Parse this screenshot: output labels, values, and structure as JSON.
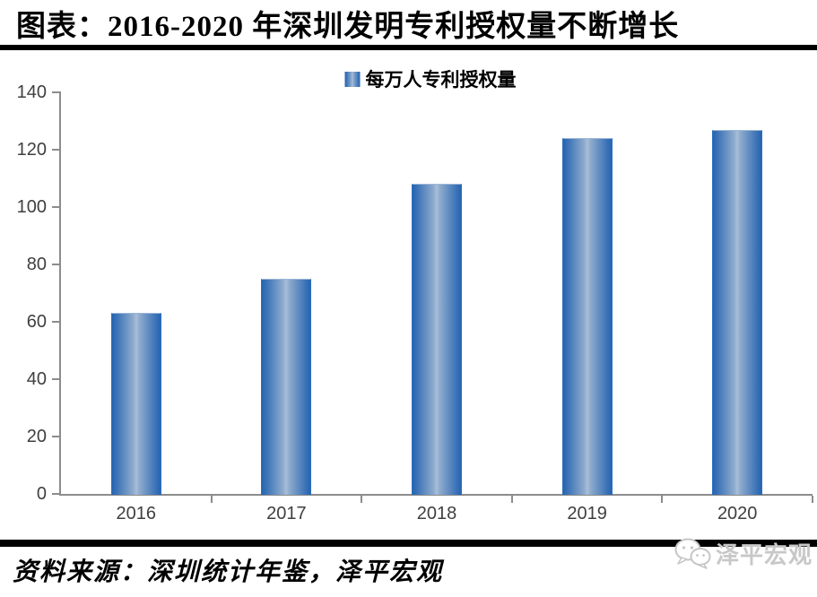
{
  "header": {
    "title": "图表：2016-2020 年深圳发明专利授权量不断增长"
  },
  "legend": {
    "label": "每万人专利授权量"
  },
  "chart_data": {
    "type": "bar",
    "title": "图表：2016-2020 年深圳发明专利授权量不断增长",
    "series_name": "每万人专利授权量",
    "categories": [
      "2016",
      "2017",
      "2018",
      "2019",
      "2020"
    ],
    "values": [
      63,
      75,
      108,
      124,
      127
    ],
    "xlabel": "",
    "ylabel": "",
    "ylim": [
      0,
      140
    ],
    "y_ticks": [
      0,
      20,
      40,
      60,
      80,
      100,
      120,
      140
    ],
    "grid": false,
    "legend_position": "top-center",
    "bar_color_edge": "#2565B0",
    "bar_color_center": "#A9BED9"
  },
  "footer": {
    "source": "资料来源：深圳统计年鉴，泽平宏观",
    "logo_text": "泽平宏观"
  },
  "colors": {
    "accent_blue_edge": "#2565B0",
    "accent_blue_center": "#A9BED9",
    "axis_gray": "#8C8C8C",
    "tick_label_gray": "#3F3F3F",
    "rule_black": "#000000",
    "logo_gray": "#C8C8C8"
  }
}
